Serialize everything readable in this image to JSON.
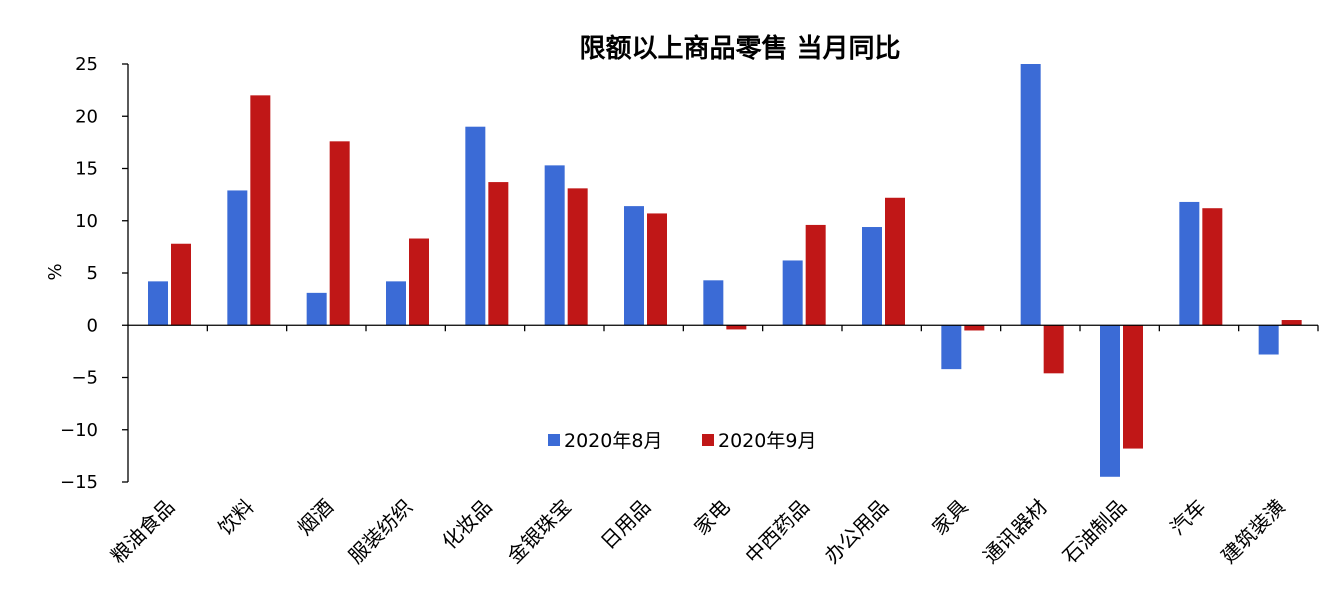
{
  "chart_data": {
    "type": "bar",
    "title": "限额以上商品零售 当月同比",
    "xlabel": "",
    "ylabel": "%",
    "ylim": [
      -15,
      25
    ],
    "yticks": [
      25,
      20,
      15,
      10,
      5,
      0,
      -5,
      -10,
      -15
    ],
    "ytick_labels": [
      "25",
      "20",
      "15",
      "10",
      "5",
      "0",
      "−5",
      "−10",
      "−15"
    ],
    "categories": [
      "粮油食品",
      "饮料",
      "烟酒",
      "服装纺织",
      "化妆品",
      "金银珠宝",
      "日用品",
      "家电",
      "中西药品",
      "办公用品",
      "家具",
      "通讯器材",
      "石油制品",
      "汽车",
      "建筑装潢"
    ],
    "series": [
      {
        "name": "2020年8月",
        "color": "#3b6bd6",
        "values": [
          4.2,
          12.9,
          3.1,
          4.2,
          19.0,
          15.3,
          11.4,
          4.3,
          6.2,
          9.4,
          -4.2,
          25.0,
          -14.5,
          11.8,
          -2.8
        ]
      },
      {
        "name": "2020年9月",
        "color": "#c01717",
        "values": [
          7.8,
          22.0,
          17.6,
          8.3,
          13.7,
          13.1,
          10.7,
          -0.4,
          9.6,
          12.2,
          -0.5,
          -4.6,
          -11.8,
          11.2,
          0.5
        ]
      }
    ],
    "grid": false,
    "legend": "lower-center"
  }
}
